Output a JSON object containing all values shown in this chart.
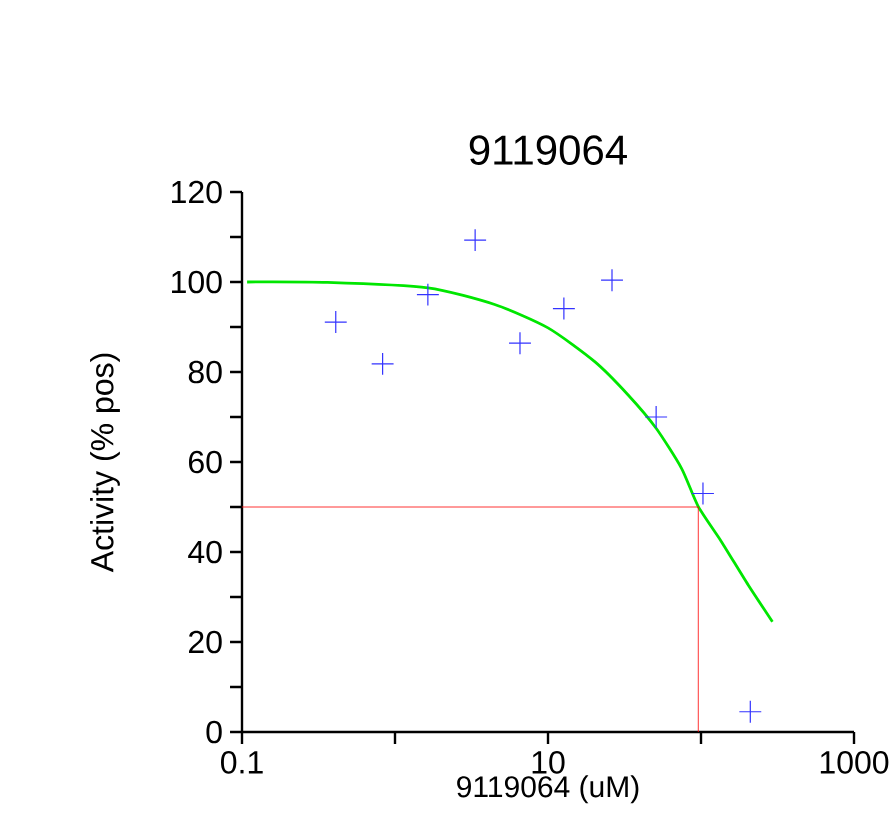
{
  "chart_data": {
    "type": "scatter",
    "title": "9119064",
    "xlabel": "9119064    (uM)",
    "ylabel": "Activity  (% pos)",
    "log": "x",
    "xlim": [
      0.1,
      1000
    ],
    "ylim": [
      0,
      120
    ],
    "xticks": [
      0.1,
      {
        "value": 1,
        "label": null
      },
      10,
      {
        "value": 100,
        "label": null
      },
      1000
    ],
    "yticks": [
      0,
      {
        "value": 10,
        "label": null
      },
      20,
      {
        "value": 30,
        "label": null
      },
      40,
      {
        "value": 50,
        "label": null
      },
      60,
      {
        "value": 70,
        "label": null
      },
      80,
      {
        "value": 90,
        "label": null
      },
      100,
      {
        "value": 110,
        "label": null
      },
      120
    ],
    "grid": false,
    "marker": "cross",
    "series": [
      {
        "color": "#3333ff",
        "x": [
          0.41,
          0.83,
          1.64,
          3.34,
          6.56,
          12.7,
          26.2,
          50.9,
          103,
          210
        ],
        "values": [
          91.1,
          81.8,
          97.2,
          109.3,
          86.4,
          94.1,
          100.4,
          70.0,
          53.0,
          4.5
        ]
      },
      {
        "type": "line",
        "color": "#00e600",
        "marker": "none",
        "x": [
          0.108,
          0.362,
          1.64,
          4.48,
          10,
          20.2,
          33.4,
          50.9,
          74.6,
          96,
          136,
          204,
          293
        ],
        "values": [
          100,
          99.9,
          98.7,
          95,
          89.8,
          82.3,
          74.9,
          67.5,
          58.6,
          50.1,
          42.3,
          32.6,
          24.5
        ]
      },
      {
        "type": "line",
        "color": "#ff0000",
        "marker": "none",
        "x": [
          0.1,
          96,
          96
        ],
        "values": [
          50,
          50,
          0
        ]
      }
    ]
  }
}
